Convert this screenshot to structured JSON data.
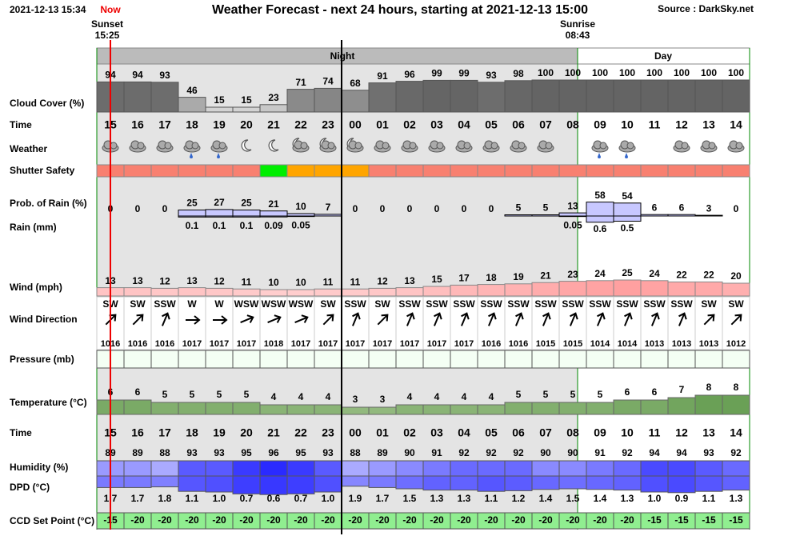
{
  "header": {
    "timestamp": "2021-12-13 15:34",
    "now": "Now",
    "title": "Weather Forecast - next 24 hours, starting at 2021-12-13 15:00",
    "source": "Source : DarkSky.net",
    "sunset": {
      "label": "Sunset",
      "time": "15:25"
    },
    "sunrise": {
      "label": "Sunrise",
      "time": "08:43"
    },
    "night": "Night",
    "day": "Day"
  },
  "hours": [
    "15",
    "16",
    "17",
    "18",
    "19",
    "20",
    "21",
    "22",
    "23",
    "00",
    "01",
    "02",
    "03",
    "04",
    "05",
    "06",
    "07",
    "08",
    "09",
    "10",
    "11",
    "12",
    "13",
    "14"
  ],
  "rows": {
    "cloud_cover": {
      "label": "Cloud Cover (%)",
      "values": [
        94,
        94,
        93,
        46,
        15,
        15,
        23,
        71,
        74,
        68,
        91,
        96,
        99,
        99,
        93,
        98,
        100,
        100,
        100,
        100,
        100,
        100,
        100,
        100
      ]
    },
    "time": {
      "label": "Time"
    },
    "weather": {
      "label": "Weather"
    },
    "shutter_safety": {
      "label": "Shutter Safety",
      "colors": [
        "#f88070",
        "#f88070",
        "#f88070",
        "#f88070",
        "#f88070",
        "#f88070",
        "#00ee00",
        "#ffa500",
        "#ffa500",
        "#ffa500",
        "#f88070",
        "#f88070",
        "#f88070",
        "#f88070",
        "#f88070",
        "#f88070",
        "#f88070",
        "#f88070",
        "#f88070",
        "#f88070",
        "#f88070",
        "#f88070",
        "#f88070",
        "#f88070"
      ]
    },
    "prob_rain": {
      "label": "Prob. of Rain (%)",
      "values": [
        0,
        0,
        0,
        25,
        27,
        25,
        21,
        10,
        7,
        0,
        0,
        0,
        0,
        0,
        0,
        5,
        5,
        13,
        58,
        54,
        6,
        6,
        3,
        0
      ]
    },
    "rain": {
      "label": "Rain (mm)",
      "values": [
        null,
        null,
        null,
        0.1,
        0.1,
        0.1,
        0.09,
        0.05,
        null,
        null,
        null,
        null,
        null,
        null,
        null,
        null,
        null,
        0.05,
        0.6,
        0.5,
        null,
        null,
        null,
        null
      ]
    },
    "wind": {
      "label": "Wind (mph)",
      "values": [
        13,
        13,
        12,
        13,
        12,
        11,
        10,
        10,
        11,
        11,
        12,
        13,
        15,
        17,
        18,
        19,
        21,
        23,
        24,
        25,
        24,
        22,
        22,
        20
      ]
    },
    "wind_direction": {
      "label": "Wind Direction",
      "values": [
        "SW",
        "SW",
        "SSW",
        "W",
        "W",
        "WSW",
        "WSW",
        "WSW",
        "SW",
        "SSW",
        "SW",
        "SSW",
        "SSW",
        "SSW",
        "SSW",
        "SSW",
        "SSW",
        "SSW",
        "SSW",
        "SSW",
        "SSW",
        "SSW",
        "SW",
        "SW"
      ]
    },
    "pressure": {
      "label": "Pressure (mb)",
      "values": [
        1016,
        1016,
        1016,
        1017,
        1017,
        1017,
        1018,
        1017,
        1017,
        1017,
        1017,
        1017,
        1017,
        1017,
        1016,
        1016,
        1015,
        1015,
        1014,
        1014,
        1013,
        1013,
        1013,
        1012
      ]
    },
    "temperature": {
      "label": "Temperature (°C)",
      "values": [
        6,
        6,
        5,
        5,
        5,
        5,
        4,
        4,
        4,
        3,
        3,
        4,
        4,
        4,
        4,
        5,
        5,
        5,
        5,
        6,
        6,
        7,
        8,
        8
      ]
    },
    "humidity": {
      "label": "Humidity (%)",
      "values": [
        89,
        89,
        88,
        93,
        93,
        95,
        96,
        95,
        93,
        88,
        89,
        90,
        91,
        92,
        92,
        92,
        90,
        90,
        91,
        92,
        94,
        94,
        93,
        92
      ]
    },
    "dpd": {
      "label": "DPD (°C)",
      "values": [
        1.7,
        1.7,
        1.8,
        1.1,
        1.0,
        0.7,
        0.6,
        0.7,
        1.0,
        1.9,
        1.7,
        1.5,
        1.3,
        1.3,
        1.1,
        1.2,
        1.4,
        1.5,
        1.4,
        1.3,
        1.0,
        0.9,
        1.1,
        1.3
      ],
      "value_labels": [
        "1.7",
        "1.7",
        "1.8",
        "1.1",
        "1.0",
        "0.7",
        "0.6",
        "0.7",
        "1.0",
        "1.9",
        "1.7",
        "1.5",
        "1.3",
        "1.3",
        "1.1",
        "1.2",
        "1.4",
        "1.5",
        "1.4",
        "1.3",
        "1.0",
        "0.9",
        "1.1",
        "1.3"
      ]
    },
    "ccd": {
      "label": "CCD Set Point (°C)",
      "values": [
        -15,
        -20,
        -20,
        -20,
        -20,
        -20,
        -20,
        -20,
        -20,
        -20,
        -20,
        -20,
        -20,
        -20,
        -20,
        -20,
        -20,
        -20,
        -20,
        -20,
        -15,
        -15,
        -15,
        -15
      ]
    }
  }
}
